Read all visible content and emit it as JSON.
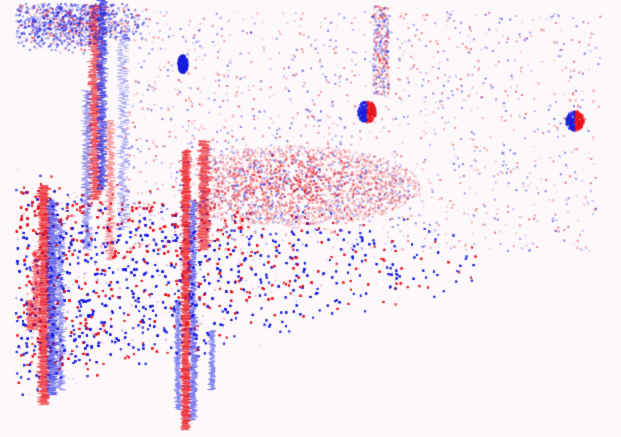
{
  "image": {
    "description_type": "differential-intensity map",
    "background_color": "#fdf9fb",
    "colors": {
      "positive": "#ff0000",
      "negative": "#0000ff",
      "neutral": "#ffffff"
    }
  }
}
